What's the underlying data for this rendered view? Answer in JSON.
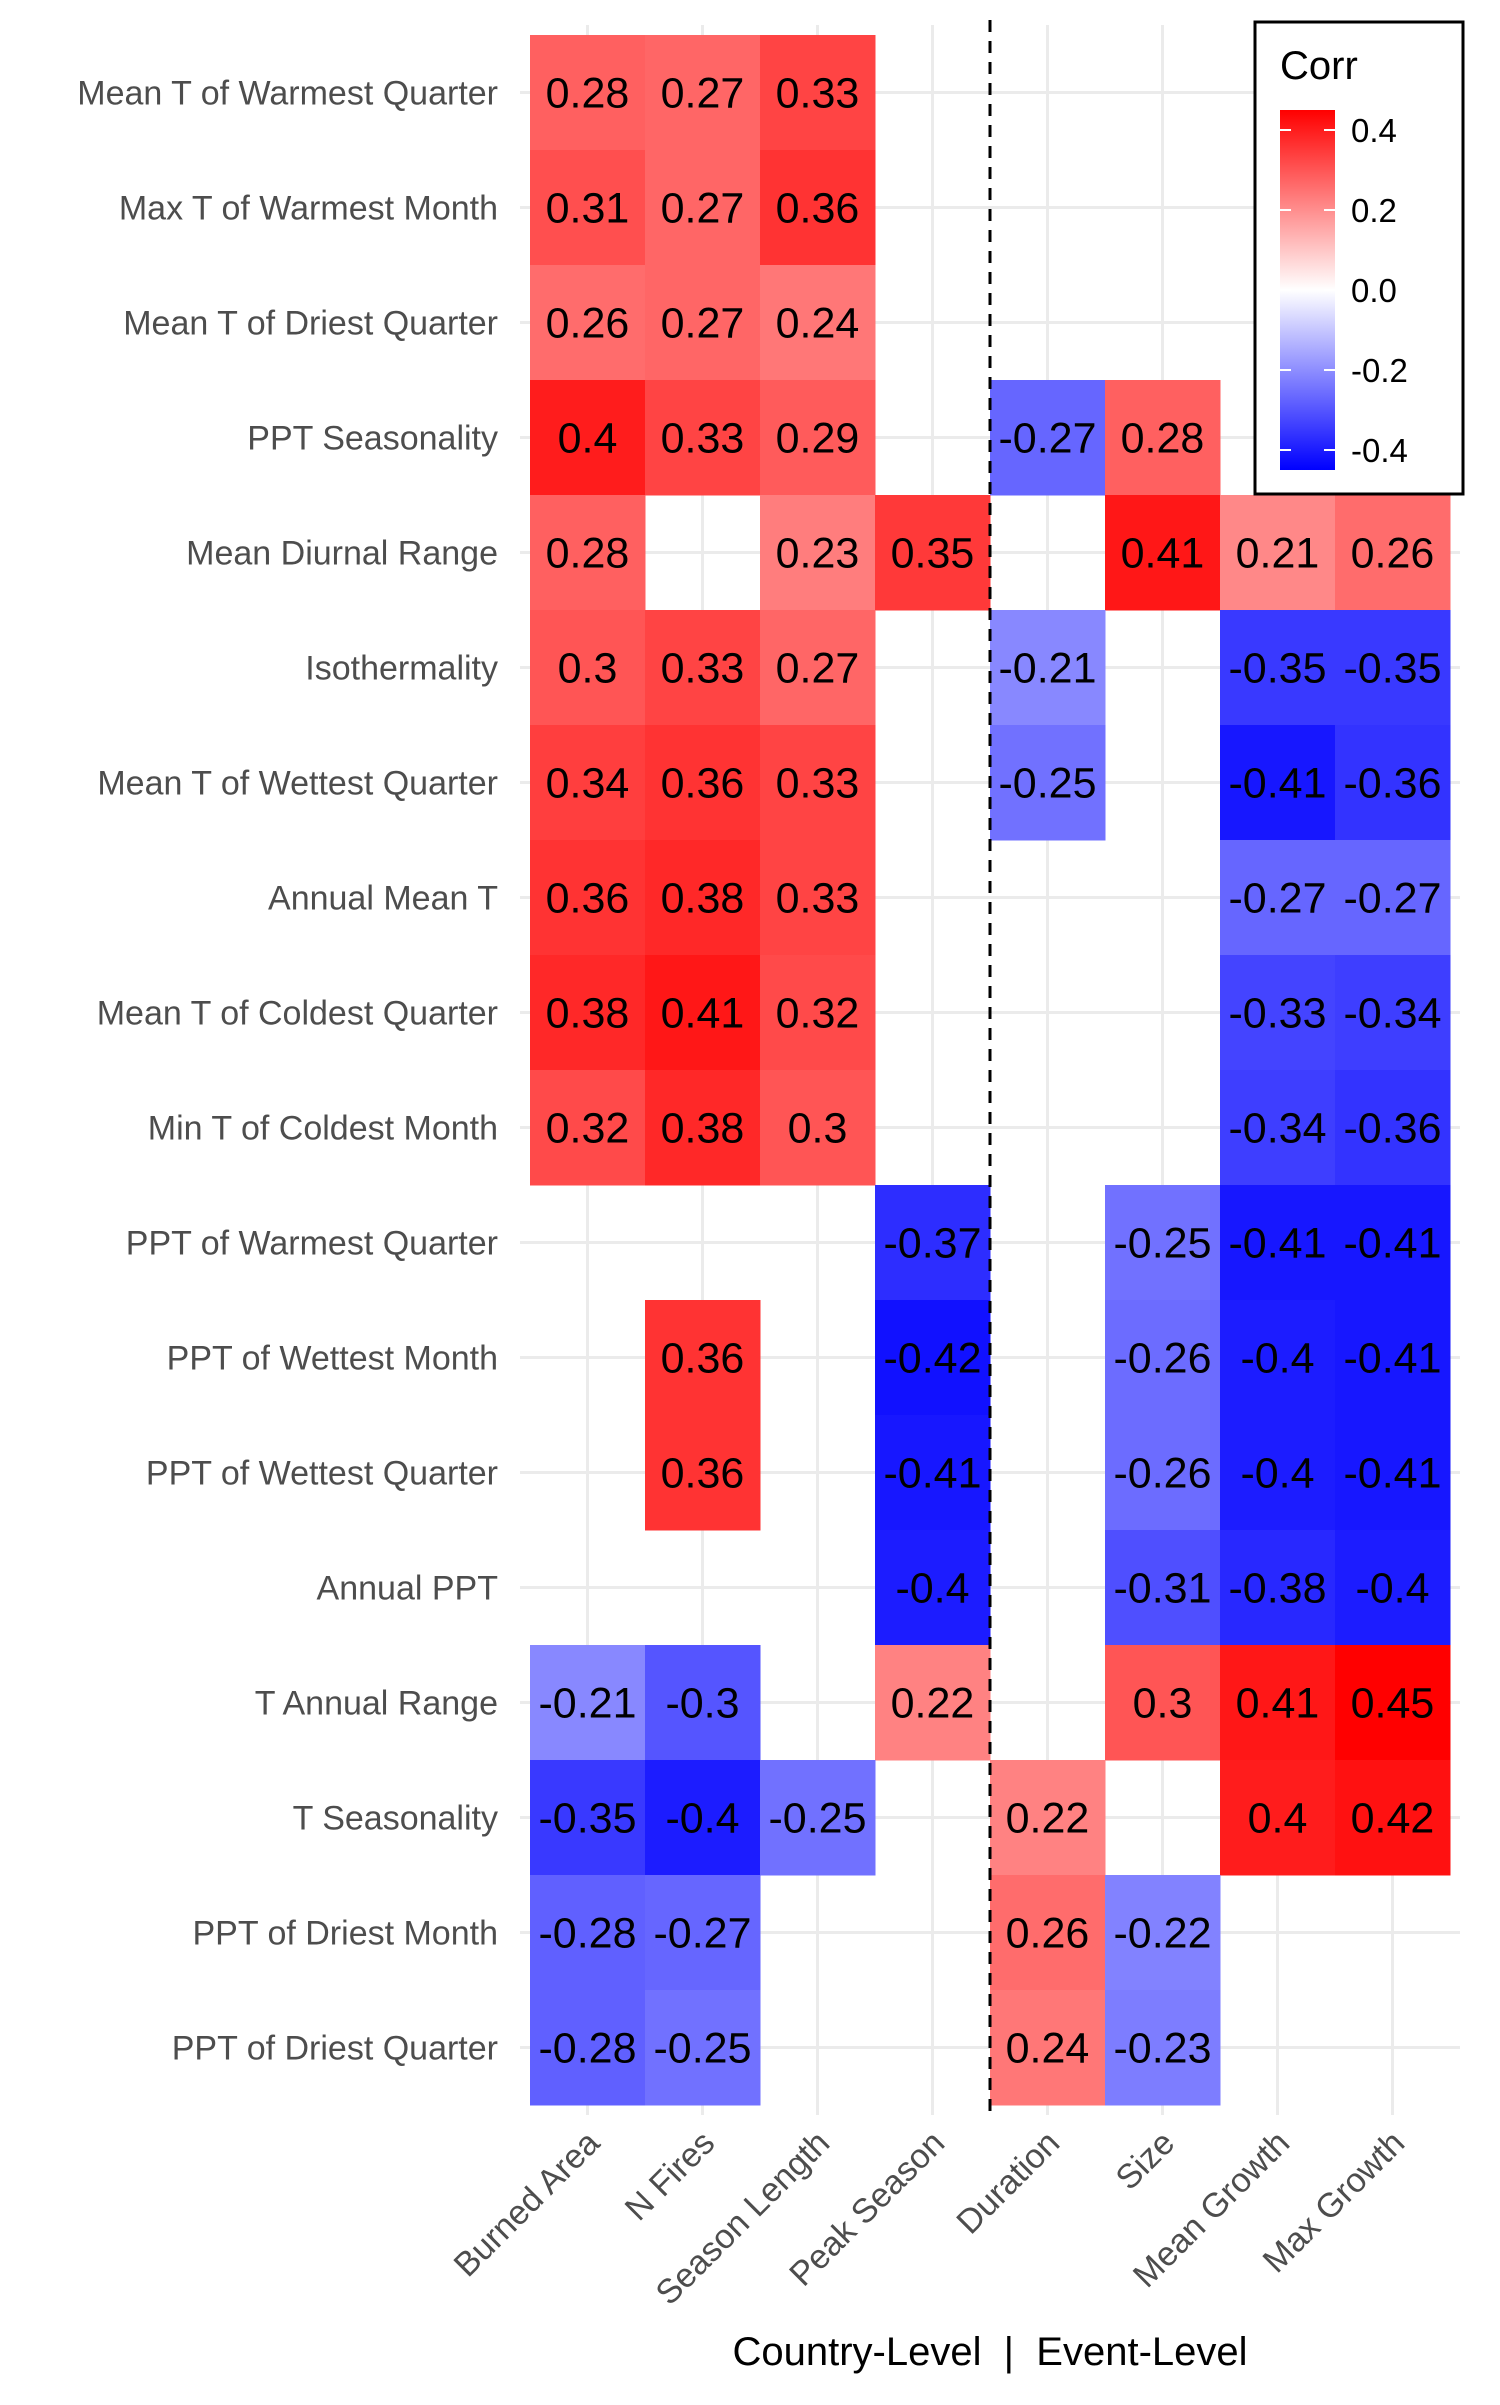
{
  "chart_data": {
    "type": "heatmap",
    "rows": [
      "Mean T of Warmest Quarter",
      "Max T of Warmest Month",
      "Mean T of Driest Quarter",
      "PPT Seasonality",
      "Mean Diurnal Range",
      "Isothermality",
      "Mean T of Wettest Quarter",
      "Annual Mean T",
      "Mean T of Coldest Quarter",
      "Min T of Coldest Month",
      "PPT of Warmest Quarter",
      "PPT of Wettest Month",
      "PPT of Wettest Quarter",
      "Annual PPT",
      "T Annual Range",
      "T Seasonality",
      "PPT of Driest Month",
      "PPT of Driest Quarter"
    ],
    "columns": [
      "Burned Area",
      "N Fires",
      "Season Length",
      "Peak Season",
      "Duration",
      "Size",
      "Mean Growth",
      "Max Growth"
    ],
    "values": [
      [
        0.28,
        0.27,
        0.33,
        null,
        null,
        null,
        null,
        null
      ],
      [
        0.31,
        0.27,
        0.36,
        null,
        null,
        null,
        null,
        null
      ],
      [
        0.26,
        0.27,
        0.24,
        null,
        null,
        null,
        null,
        null
      ],
      [
        0.4,
        0.33,
        0.29,
        null,
        -0.27,
        0.28,
        null,
        null
      ],
      [
        0.28,
        null,
        0.23,
        0.35,
        null,
        0.41,
        0.21,
        0.26
      ],
      [
        0.3,
        0.33,
        0.27,
        null,
        -0.21,
        null,
        -0.35,
        -0.35
      ],
      [
        0.34,
        0.36,
        0.33,
        null,
        -0.25,
        null,
        -0.41,
        -0.36
      ],
      [
        0.36,
        0.38,
        0.33,
        null,
        null,
        null,
        -0.27,
        -0.27
      ],
      [
        0.38,
        0.41,
        0.32,
        null,
        null,
        null,
        -0.33,
        -0.34
      ],
      [
        0.32,
        0.38,
        0.3,
        null,
        null,
        null,
        -0.34,
        -0.36
      ],
      [
        null,
        null,
        null,
        -0.37,
        null,
        -0.25,
        -0.41,
        -0.41
      ],
      [
        null,
        0.36,
        null,
        -0.42,
        null,
        -0.26,
        -0.4,
        -0.41
      ],
      [
        null,
        0.36,
        null,
        -0.41,
        null,
        -0.26,
        -0.4,
        -0.41
      ],
      [
        null,
        null,
        null,
        -0.4,
        null,
        -0.31,
        -0.38,
        -0.4
      ],
      [
        -0.21,
        -0.3,
        null,
        0.22,
        null,
        0.3,
        0.41,
        0.45
      ],
      [
        -0.35,
        -0.4,
        -0.25,
        null,
        0.22,
        null,
        0.4,
        0.42
      ],
      [
        -0.28,
        -0.27,
        null,
        null,
        0.26,
        -0.22,
        null,
        null
      ],
      [
        -0.28,
        -0.25,
        null,
        null,
        0.24,
        -0.23,
        null,
        null
      ]
    ],
    "xlabel": "Country-Level  |  Event-Level",
    "divider_between": [
      "Peak Season",
      "Duration"
    ],
    "legend": {
      "title": "Corr",
      "ticks": [
        "0.4",
        "0.2",
        "0.0",
        "-0.2",
        "-0.4"
      ],
      "tick_values": [
        0.4,
        0.2,
        0.0,
        -0.2,
        -0.4
      ],
      "range": [
        -0.45,
        0.45
      ],
      "placement": "top-right"
    },
    "colors": {
      "high": "#ff0000",
      "mid": "#ffffff",
      "low": "#0000ff"
    },
    "grid": true
  }
}
